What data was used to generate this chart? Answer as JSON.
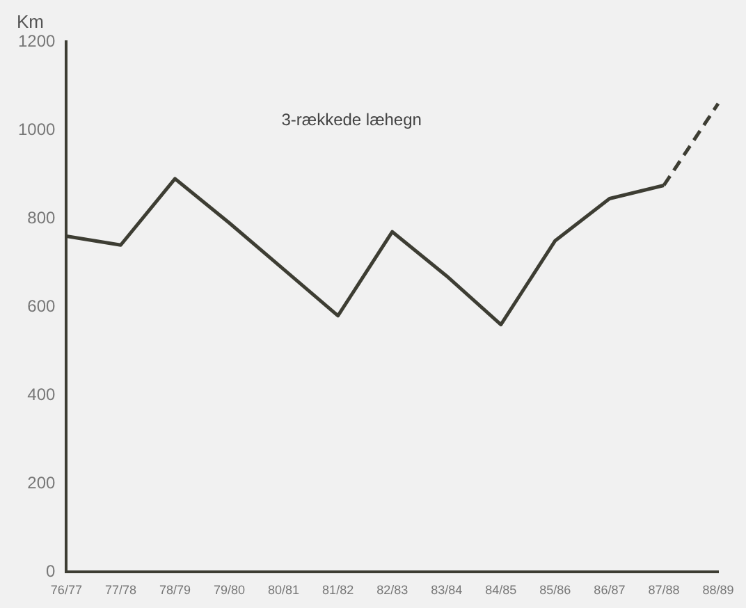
{
  "chart_data": {
    "type": "line",
    "ylabel": "Km",
    "annotations": [
      "3-rækkede læhegn"
    ],
    "categories": [
      "76/77",
      "77/78",
      "78/79",
      "79/80",
      "80/81",
      "81/82",
      "82/83",
      "83/84",
      "84/85",
      "85/86",
      "86/87",
      "87/88",
      "88/89"
    ],
    "series": [
      {
        "color": "#3d3d33",
        "values": [
          760,
          740,
          890,
          790,
          685,
          580,
          770,
          670,
          560,
          750,
          845,
          875,
          null
        ]
      },
      {
        "color": "#3d3d33",
        "line_style": "dashed",
        "values": [
          null,
          null,
          null,
          null,
          null,
          null,
          null,
          null,
          null,
          null,
          null,
          875,
          1060
        ]
      }
    ],
    "ylim": [
      0,
      1200
    ],
    "yticks": [
      0,
      200,
      400,
      600,
      800,
      1000,
      1200
    ],
    "grid": false,
    "legend": false,
    "marker": "none",
    "line_style": "solid"
  }
}
